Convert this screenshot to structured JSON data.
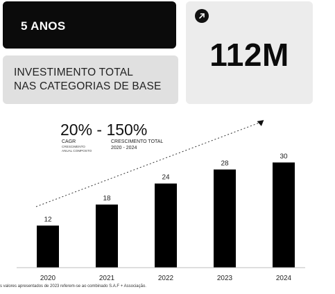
{
  "period_card": {
    "label": "5 ANOS"
  },
  "title_card": {
    "line1": "INVESTIMENTO TOTAL",
    "line2": "NAS CATEGORIAS DE BASE"
  },
  "stat_card": {
    "value": "112M",
    "icon": "arrow-up-right-icon"
  },
  "growth": {
    "headline": "20% - 150%",
    "cagr_label": "CAGR",
    "cagr_sub_line1": "CRESCIMENTO",
    "cagr_sub_line2": "ANUAL COMPOSTO",
    "total_label": "CRESCIMENTO TOTAL",
    "total_period": "2020 - 2024"
  },
  "chart_data": {
    "type": "bar",
    "categories": [
      "2020",
      "2021",
      "2022",
      "2023",
      "2024"
    ],
    "values": [
      12,
      18,
      24,
      28,
      30
    ],
    "ylim": [
      0,
      36
    ],
    "trend_arrow": "dashed, rising left to right",
    "grid": false,
    "bar_color": "#000000"
  },
  "footnote": "s valores apresentados de 2023 referem-se ao combinado S.A.F + Associação."
}
